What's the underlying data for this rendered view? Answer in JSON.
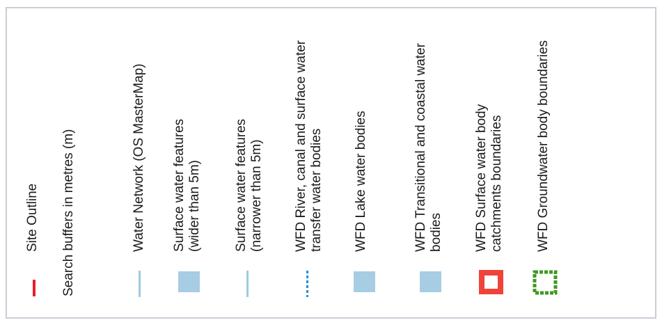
{
  "legend": {
    "items": [
      {
        "label": "Site Outline",
        "symbol": "red-line-icon",
        "color": "#e8202a"
      },
      {
        "label": "Search buffers in metres (m)",
        "symbol": ""
      },
      {
        "label": "Water Network (OS MasterMap)",
        "symbol": "light-blue-line-icon",
        "color": "#9ecae1"
      },
      {
        "label_lines": [
          "Surface water features",
          "(wider than 5m)"
        ],
        "symbol": "light-blue-square-icon",
        "color": "#a6cde3"
      },
      {
        "label_lines": [
          "Surface water features",
          "(narrower than 5m)"
        ],
        "symbol": "light-blue-line-icon",
        "color": "#9ecae1"
      },
      {
        "label_lines": [
          "WFD River, canal and surface water",
          "transfer water bodies"
        ],
        "symbol": "blue-dashed-line-icon",
        "color": "#1f8fe0"
      },
      {
        "label": "WFD Lake water bodies",
        "symbol": "light-blue-square-icon",
        "color": "#a6cde3"
      },
      {
        "label_lines": [
          "WFD Transitional and coastal water",
          "bodies"
        ],
        "symbol": "light-blue-square-icon",
        "color": "#a6cde3"
      },
      {
        "label_lines": [
          "WFD Surface water body",
          "catchments boundaries"
        ],
        "symbol": "red-outline-square-icon",
        "color": "#f0433a"
      },
      {
        "label": "WFD Groundwater body boundaries",
        "symbol": "green-dashed-square-icon",
        "color": "#3e9b1f"
      }
    ]
  }
}
